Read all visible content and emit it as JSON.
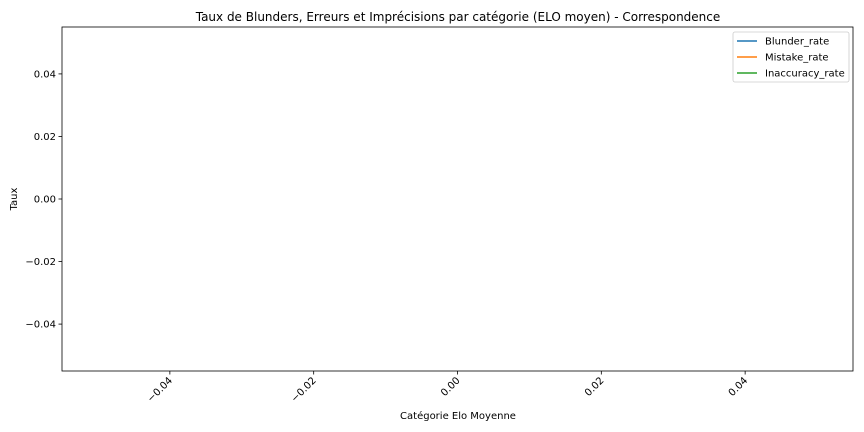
{
  "chart_data": {
    "type": "line",
    "title": "Taux de Blunders, Erreurs et Imprécisions par catégorie (ELO moyen) - Correspondence",
    "xlabel": "Catégorie Elo Moyenne",
    "ylabel": "Taux",
    "xlim": [
      -0.055,
      0.055
    ],
    "ylim": [
      -0.055,
      0.055
    ],
    "xticks": [
      -0.04,
      -0.02,
      0.0,
      0.02,
      0.04
    ],
    "xtick_labels": [
      "−0.04",
      "−0.02",
      "0.00",
      "0.02",
      "0.04"
    ],
    "yticks": [
      0.04,
      0.02,
      0.0,
      -0.02,
      -0.04
    ],
    "ytick_labels": [
      "0.04",
      "0.02",
      "0.00",
      "−0.02",
      "−0.04"
    ],
    "xtick_rotation": 45,
    "grid": false,
    "legend_position": "upper right",
    "series": [
      {
        "name": "Blunder_rate",
        "color": "#1f77b4",
        "x": [],
        "y": []
      },
      {
        "name": "Mistake_rate",
        "color": "#ff7f0e",
        "x": [],
        "y": []
      },
      {
        "name": "Inaccuracy_rate",
        "color": "#2ca02c",
        "x": [],
        "y": []
      }
    ]
  }
}
